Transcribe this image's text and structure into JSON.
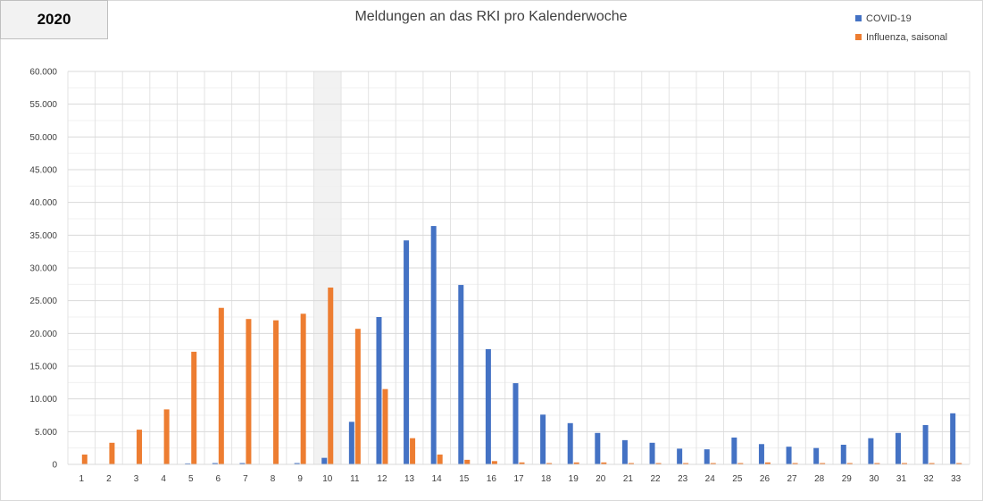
{
  "year_label": "2020",
  "chart_data": {
    "type": "bar",
    "title": "Meldungen an das RKI pro Kalenderwoche",
    "xlabel": "",
    "ylabel": "",
    "ylim": [
      0,
      60000
    ],
    "y_ticks": [
      "0",
      "5.000",
      "10.000",
      "15.000",
      "20.000",
      "25.000",
      "30.000",
      "35.000",
      "40.000",
      "45.000",
      "50.000",
      "55.000",
      "60.000"
    ],
    "categories": [
      "1",
      "2",
      "3",
      "4",
      "5",
      "6",
      "7",
      "8",
      "9",
      "10",
      "11",
      "12",
      "13",
      "14",
      "15",
      "16",
      "17",
      "18",
      "19",
      "20",
      "21",
      "22",
      "23",
      "24",
      "25",
      "26",
      "27",
      "28",
      "29",
      "30",
      "31",
      "32",
      "33"
    ],
    "highlighted_category": "10",
    "legend_position": "top-right",
    "grid": true,
    "series": [
      {
        "name": "COVID-19",
        "color": "#4472c4",
        "values": [
          0,
          0,
          0,
          0,
          150,
          200,
          200,
          0,
          200,
          1000,
          6500,
          22500,
          34200,
          36400,
          27400,
          17600,
          12400,
          7600,
          6300,
          4800,
          3700,
          3300,
          2400,
          2300,
          4100,
          3100,
          2700,
          2500,
          3000,
          4000,
          4800,
          6000,
          7800
        ]
      },
      {
        "name": "Influenza, saisonal",
        "color": "#ed7d31",
        "values": [
          1500,
          3300,
          5300,
          8400,
          17200,
          23900,
          22200,
          22000,
          23000,
          27000,
          20700,
          11500,
          4000,
          1500,
          700,
          500,
          300,
          200,
          300,
          300,
          200,
          200,
          200,
          200,
          200,
          300,
          200,
          200,
          200,
          200,
          200,
          200,
          200
        ]
      }
    ]
  }
}
